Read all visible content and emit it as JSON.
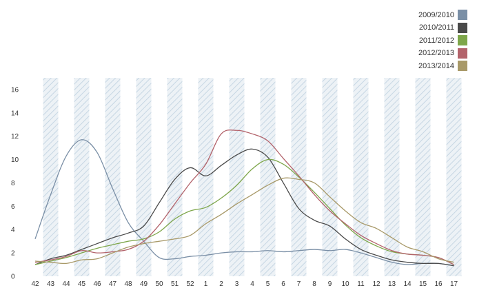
{
  "chart_data": {
    "type": "line",
    "title": "",
    "xlabel": "",
    "ylabel": "",
    "ylim": [
      0,
      17
    ],
    "yticks": [
      0,
      2,
      4,
      6,
      8,
      10,
      12,
      14,
      16
    ],
    "categories": [
      "42",
      "43",
      "44",
      "45",
      "46",
      "47",
      "48",
      "49",
      "50",
      "51",
      "52",
      "1",
      "2",
      "3",
      "4",
      "5",
      "6",
      "7",
      "8",
      "9",
      "10",
      "11",
      "12",
      "13",
      "14",
      "15",
      "16",
      "17"
    ],
    "shaded_categories": [
      "43",
      "45",
      "47",
      "49",
      "51",
      "1",
      "3",
      "5",
      "7",
      "9",
      "11",
      "13",
      "15",
      "17"
    ],
    "legend_position": "top-right",
    "grid": false,
    "series": [
      {
        "name": "2009/2010",
        "color": "#7a8fa6",
        "values": [
          3.2,
          7.0,
          10.3,
          11.7,
          10.6,
          7.5,
          4.6,
          3.0,
          1.6,
          1.5,
          1.7,
          1.8,
          2.0,
          2.1,
          2.1,
          2.2,
          2.1,
          2.2,
          2.3,
          2.2,
          2.3,
          2.0,
          1.6,
          1.2,
          1.0,
          1.1,
          1.1,
          0.9
        ]
      },
      {
        "name": "2010/2011",
        "color": "#4a4a4a",
        "values": [
          1.0,
          1.5,
          1.8,
          2.3,
          2.8,
          3.3,
          3.7,
          4.3,
          6.3,
          8.3,
          9.3,
          8.6,
          9.5,
          10.4,
          10.9,
          10.2,
          8.0,
          5.8,
          4.8,
          4.3,
          3.2,
          2.3,
          1.8,
          1.4,
          1.2,
          1.1,
          1.1,
          0.9
        ]
      },
      {
        "name": "2011/2012",
        "color": "#7ea64a",
        "values": [
          1.0,
          1.3,
          1.6,
          2.0,
          2.4,
          2.7,
          3.0,
          3.2,
          3.8,
          4.9,
          5.6,
          5.9,
          6.7,
          7.8,
          9.2,
          10.0,
          9.6,
          8.5,
          7.2,
          5.8,
          4.4,
          3.3,
          2.6,
          2.1,
          1.9,
          1.8,
          1.6,
          1.0
        ]
      },
      {
        "name": "2012/2013",
        "color": "#b3636b",
        "values": [
          1.2,
          1.4,
          1.7,
          2.2,
          2.0,
          2.1,
          2.3,
          3.0,
          4.4,
          6.2,
          8.0,
          9.6,
          12.2,
          12.5,
          12.2,
          11.6,
          10.1,
          8.6,
          7.0,
          5.6,
          4.5,
          3.5,
          2.8,
          2.2,
          1.9,
          1.8,
          1.6,
          1.0
        ]
      },
      {
        "name": "2013/2014",
        "color": "#a89968",
        "values": [
          1.3,
          1.2,
          1.1,
          1.4,
          1.5,
          2.0,
          2.5,
          2.8,
          3.0,
          3.2,
          3.5,
          4.5,
          5.3,
          6.2,
          7.0,
          7.8,
          8.4,
          8.3,
          8.0,
          6.8,
          5.6,
          4.6,
          4.1,
          3.3,
          2.5,
          2.1,
          1.5,
          1.2
        ]
      }
    ]
  }
}
